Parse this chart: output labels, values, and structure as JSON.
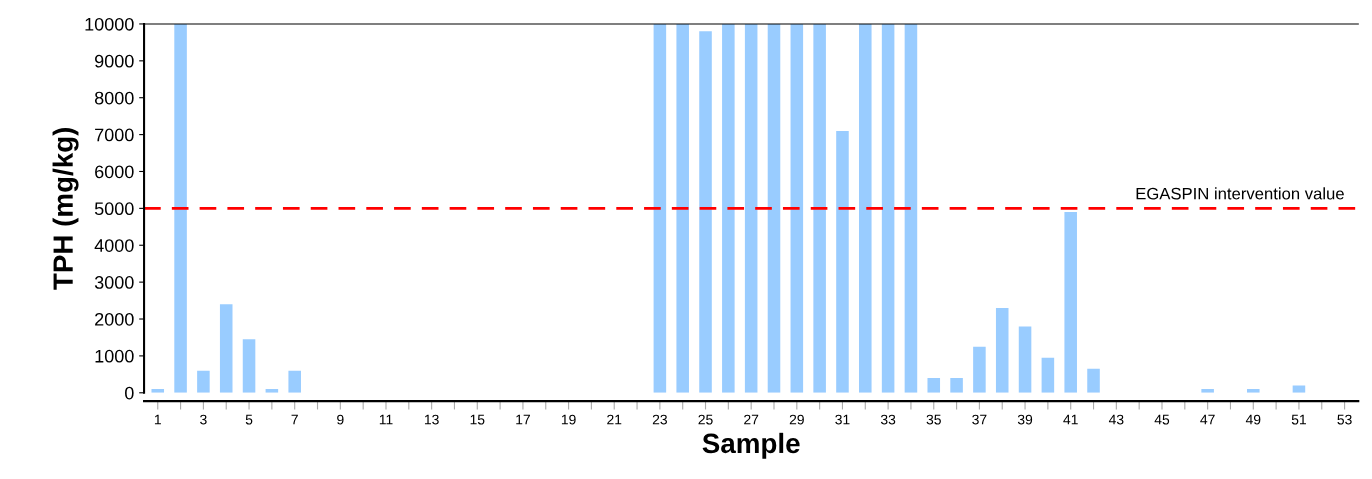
{
  "chart_data": {
    "type": "bar",
    "xlabel": "Sample",
    "ylabel": "TPH (mg/kg)",
    "categories": [
      "1",
      null,
      "3",
      null,
      "5",
      null,
      "7",
      null,
      "9",
      null,
      "11",
      null,
      "13",
      null,
      "15",
      null,
      "17",
      null,
      "19",
      null,
      "21",
      null,
      "23",
      null,
      "25",
      null,
      "27",
      null,
      "29",
      null,
      "31",
      null,
      "33",
      null,
      "35",
      null,
      "37",
      null,
      "39",
      null,
      "41",
      null,
      "43",
      null,
      "45",
      null,
      "47",
      null,
      "49",
      null,
      "51",
      null,
      "53"
    ],
    "values": [
      100,
      10000,
      600,
      2400,
      1450,
      100,
      600,
      0,
      0,
      0,
      0,
      0,
      0,
      0,
      0,
      0,
      0,
      0,
      0,
      0,
      0,
      0,
      10000,
      10000,
      9800,
      10000,
      10000,
      10000,
      10000,
      10000,
      7100,
      10000,
      10000,
      10000,
      400,
      400,
      1250,
      2300,
      1800,
      950,
      4900,
      650,
      0,
      0,
      0,
      0,
      100,
      0,
      100,
      0,
      200,
      0,
      0
    ],
    "color": "#99ccff",
    "ylim": [
      0,
      10000
    ],
    "yticks": [
      0,
      1000,
      2000,
      3000,
      4000,
      5000,
      6000,
      7000,
      8000,
      9000,
      10000
    ],
    "ref_lines": [
      {
        "axis": "y",
        "value": 5000,
        "label": "EGASPIN intervention value",
        "color": "#ff0000",
        "line_style": "dashed"
      }
    ],
    "grid": false,
    "legend": false
  }
}
